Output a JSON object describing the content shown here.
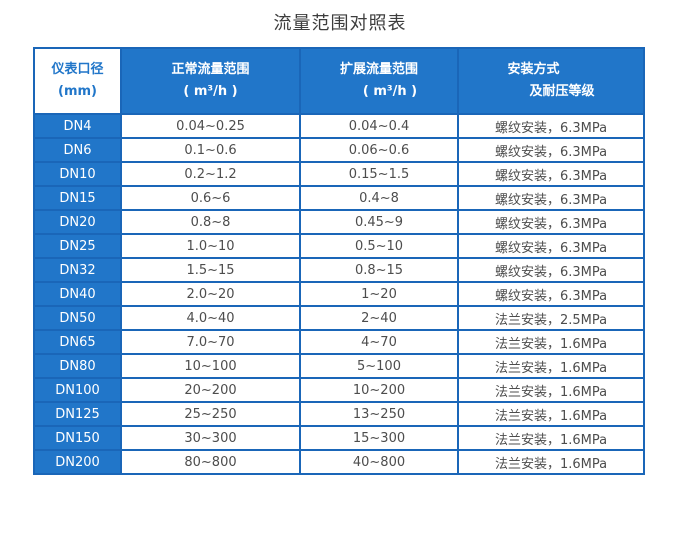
{
  "title": "流量范围对照表",
  "colors": {
    "header_blue": "#2176c9",
    "border_blue": "#1a66b8",
    "cell_text": "#4d4d4d",
    "title_text": "#3d3d3d"
  },
  "header": {
    "columns": [
      {
        "line1": "仪表口径",
        "line2": "(mm)"
      },
      {
        "line1": "正常流量范围",
        "line2": "( m³/h )"
      },
      {
        "line1": "扩展流量范围",
        "line2": "( m³/h )"
      },
      {
        "line1": "安装方式",
        "line2": "及耐压等级"
      }
    ]
  },
  "chart_data": {
    "type": "table",
    "title": "流量范围对照表",
    "columns": [
      "仪表口径 (mm)",
      "正常流量范围 ( m³/h )",
      "扩展流量范围 ( m³/h )",
      "安装方式及耐压等级"
    ],
    "rows": [
      [
        "DN4",
        "0.04~0.25",
        "0.04~0.4",
        "螺纹安装，6.3MPa"
      ],
      [
        "DN6",
        "0.1~0.6",
        "0.06~0.6",
        "螺纹安装，6.3MPa"
      ],
      [
        "DN10",
        "0.2~1.2",
        "0.15~1.5",
        "螺纹安装，6.3MPa"
      ],
      [
        "DN15",
        "0.6~6",
        "0.4~8",
        "螺纹安装，6.3MPa"
      ],
      [
        "DN20",
        "0.8~8",
        "0.45~9",
        "螺纹安装，6.3MPa"
      ],
      [
        "DN25",
        "1.0~10",
        "0.5~10",
        "螺纹安装，6.3MPa"
      ],
      [
        "DN32",
        "1.5~15",
        "0.8~15",
        "螺纹安装，6.3MPa"
      ],
      [
        "DN40",
        "2.0~20",
        "1~20",
        "螺纹安装，6.3MPa"
      ],
      [
        "DN50",
        "4.0~40",
        "2~40",
        "法兰安装，2.5MPa"
      ],
      [
        "DN65",
        "7.0~70",
        "4~70",
        "法兰安装，1.6MPa"
      ],
      [
        "DN80",
        "10~100",
        "5~100",
        "法兰安装，1.6MPa"
      ],
      [
        "DN100",
        "20~200",
        "10~200",
        "法兰安装，1.6MPa"
      ],
      [
        "DN125",
        "25~250",
        "13~250",
        "法兰安装，1.6MPa"
      ],
      [
        "DN150",
        "30~300",
        "15~300",
        "法兰安装，1.6MPa"
      ],
      [
        "DN200",
        "80~800",
        "40~800",
        "法兰安装，1.6MPa"
      ]
    ]
  }
}
